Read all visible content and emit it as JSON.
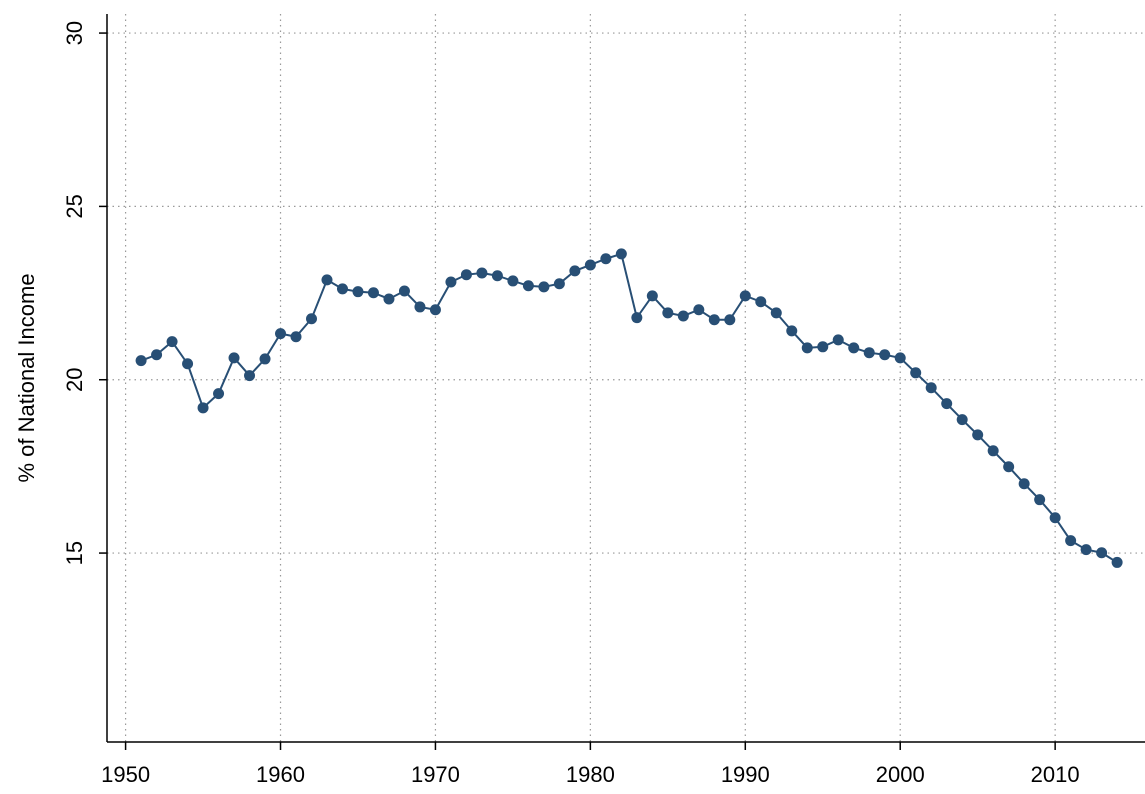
{
  "chart_data": {
    "type": "line",
    "ylabel": "% of National Income",
    "x": [
      1951,
      1952,
      1953,
      1954,
      1955,
      1956,
      1957,
      1958,
      1959,
      1960,
      1961,
      1962,
      1963,
      1964,
      1965,
      1966,
      1967,
      1968,
      1969,
      1970,
      1971,
      1972,
      1973,
      1974,
      1975,
      1976,
      1977,
      1978,
      1979,
      1980,
      1981,
      1982,
      1983,
      1984,
      1985,
      1986,
      1987,
      1988,
      1989,
      1990,
      1991,
      1992,
      1993,
      1994,
      1995,
      1996,
      1997,
      1998,
      1999,
      2000,
      2001,
      2002,
      2003,
      2004,
      2005,
      2006,
      2007,
      2008,
      2009,
      2010,
      2011,
      2012,
      2013,
      2014
    ],
    "series": [
      {
        "color": "#284f75",
        "values": [
          20.55,
          20.72,
          21.1,
          20.46,
          19.19,
          19.6,
          20.63,
          20.12,
          20.6,
          21.33,
          21.24,
          21.76,
          22.88,
          22.62,
          22.54,
          22.51,
          22.33,
          22.56,
          22.1,
          22.02,
          22.82,
          23.03,
          23.08,
          23.0,
          22.85,
          22.71,
          22.68,
          22.77,
          23.14,
          23.31,
          23.49,
          23.63,
          21.79,
          22.42,
          21.93,
          21.84,
          22.02,
          21.73,
          21.73,
          22.42,
          22.25,
          21.93,
          21.41,
          20.92,
          20.95,
          21.15,
          20.92,
          20.78,
          20.72,
          20.63,
          20.2,
          19.77,
          19.31,
          18.85,
          18.41,
          17.95,
          17.49,
          17.0,
          16.54,
          16.02,
          15.36,
          15.1,
          15.01,
          14.73
        ]
      }
    ],
    "xlim": [
      1948.8,
      2015.8
    ],
    "xticks": [
      1950,
      1960,
      1970,
      1980,
      1990,
      2000,
      2010
    ],
    "ylim": [
      9.55,
      30.55
    ],
    "yticks": [
      15,
      20,
      25,
      30
    ],
    "grid": true
  }
}
